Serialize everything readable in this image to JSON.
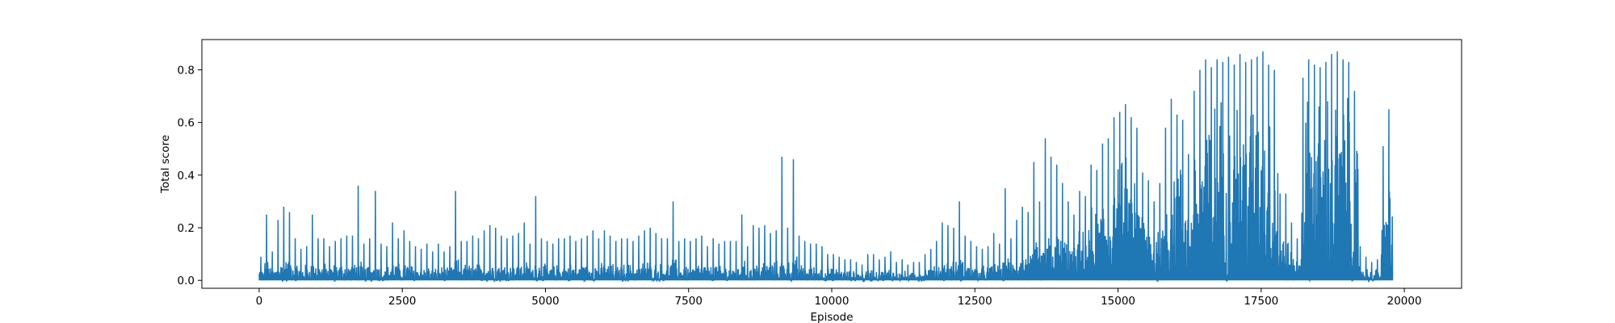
{
  "chart_data": {
    "type": "line",
    "title": "",
    "xlabel": "Episode",
    "ylabel": "Total score",
    "xlim": [
      -1000,
      21000
    ],
    "ylim": [
      -0.03,
      0.915
    ],
    "xticks": [
      0,
      2500,
      5000,
      7500,
      10000,
      12500,
      15000,
      17500,
      20000
    ],
    "xtick_labels": [
      "0",
      "2500",
      "5000",
      "7500",
      "10000",
      "12500",
      "15000",
      "17500",
      "20000"
    ],
    "yticks": [
      0.0,
      0.2,
      0.4,
      0.6,
      0.8
    ],
    "ytick_labels": [
      "0.0",
      "0.2",
      "0.4",
      "0.6",
      "0.8"
    ],
    "grid": false,
    "legend": "none",
    "color": "#1f77b4",
    "series": [
      {
        "episode_step": 100,
        "x_start": 0,
        "x_end": 20000,
        "envelope_max": [
          0.09,
          0.25,
          0.11,
          0.23,
          0.28,
          0.26,
          0.16,
          0.12,
          0.13,
          0.25,
          0.16,
          0.16,
          0.13,
          0.15,
          0.16,
          0.17,
          0.17,
          0.36,
          0.14,
          0.16,
          0.34,
          0.14,
          0.13,
          0.22,
          0.16,
          0.19,
          0.15,
          0.13,
          0.12,
          0.14,
          0.11,
          0.14,
          0.11,
          0.13,
          0.34,
          0.15,
          0.15,
          0.17,
          0.16,
          0.19,
          0.21,
          0.2,
          0.17,
          0.16,
          0.17,
          0.18,
          0.22,
          0.14,
          0.32,
          0.16,
          0.15,
          0.14,
          0.16,
          0.16,
          0.17,
          0.15,
          0.16,
          0.17,
          0.19,
          0.16,
          0.19,
          0.17,
          0.15,
          0.16,
          0.16,
          0.15,
          0.17,
          0.19,
          0.2,
          0.18,
          0.16,
          0.16,
          0.3,
          0.15,
          0.16,
          0.15,
          0.16,
          0.17,
          0.13,
          0.16,
          0.14,
          0.15,
          0.15,
          0.15,
          0.25,
          0.13,
          0.21,
          0.2,
          0.21,
          0.18,
          0.19,
          0.47,
          0.2,
          0.46,
          0.17,
          0.15,
          0.14,
          0.14,
          0.13,
          0.1,
          0.1,
          0.09,
          0.08,
          0.08,
          0.07,
          0.06,
          0.1,
          0.1,
          0.08,
          0.09,
          0.11,
          0.07,
          0.08,
          0.06,
          0.07,
          0.07,
          0.1,
          0.12,
          0.15,
          0.22,
          0.21,
          0.2,
          0.3,
          0.17,
          0.15,
          0.13,
          0.12,
          0.13,
          0.18,
          0.14,
          0.35,
          0.16,
          0.23,
          0.28,
          0.26,
          0.45,
          0.3,
          0.54,
          0.47,
          0.44,
          0.37,
          0.3,
          0.25,
          0.34,
          0.32,
          0.44,
          0.42,
          0.52,
          0.54,
          0.62,
          0.64,
          0.67,
          0.62,
          0.58,
          0.41,
          0.38,
          0.3,
          0.37,
          0.58,
          0.69,
          0.63,
          0.61,
          0.48,
          0.72,
          0.8,
          0.84,
          0.81,
          0.84,
          0.83,
          0.85,
          0.82,
          0.86,
          0.83,
          0.84,
          0.85,
          0.87,
          0.82,
          0.8,
          0.33,
          0.33,
          0.22,
          0.16,
          0.77,
          0.84,
          0.82,
          0.81,
          0.83,
          0.86,
          0.87,
          0.84,
          0.83,
          0.72,
          0.13,
          0.09,
          0.07,
          0.08,
          0.51,
          0.65
        ],
        "envelope_dense": [
          0.05,
          0.08,
          0.06,
          0.08,
          0.09,
          0.09,
          0.07,
          0.06,
          0.07,
          0.08,
          0.07,
          0.07,
          0.06,
          0.07,
          0.07,
          0.07,
          0.07,
          0.08,
          0.06,
          0.07,
          0.08,
          0.06,
          0.06,
          0.08,
          0.07,
          0.08,
          0.07,
          0.06,
          0.06,
          0.06,
          0.05,
          0.06,
          0.05,
          0.06,
          0.09,
          0.07,
          0.07,
          0.07,
          0.07,
          0.08,
          0.08,
          0.08,
          0.07,
          0.07,
          0.07,
          0.07,
          0.08,
          0.06,
          0.09,
          0.07,
          0.06,
          0.06,
          0.07,
          0.07,
          0.07,
          0.06,
          0.07,
          0.07,
          0.08,
          0.07,
          0.08,
          0.07,
          0.06,
          0.07,
          0.07,
          0.06,
          0.07,
          0.08,
          0.08,
          0.07,
          0.07,
          0.07,
          0.09,
          0.06,
          0.07,
          0.06,
          0.07,
          0.07,
          0.06,
          0.07,
          0.06,
          0.06,
          0.06,
          0.06,
          0.08,
          0.06,
          0.08,
          0.08,
          0.08,
          0.07,
          0.08,
          0.1,
          0.08,
          0.1,
          0.07,
          0.06,
          0.06,
          0.06,
          0.06,
          0.05,
          0.05,
          0.05,
          0.04,
          0.04,
          0.04,
          0.03,
          0.05,
          0.05,
          0.04,
          0.05,
          0.05,
          0.04,
          0.04,
          0.03,
          0.04,
          0.04,
          0.05,
          0.06,
          0.07,
          0.08,
          0.08,
          0.08,
          0.1,
          0.08,
          0.07,
          0.06,
          0.06,
          0.06,
          0.08,
          0.07,
          0.11,
          0.08,
          0.1,
          0.12,
          0.12,
          0.16,
          0.14,
          0.2,
          0.2,
          0.2,
          0.19,
          0.16,
          0.14,
          0.2,
          0.22,
          0.3,
          0.31,
          0.38,
          0.4,
          0.46,
          0.5,
          0.5,
          0.48,
          0.44,
          0.3,
          0.25,
          0.2,
          0.28,
          0.45,
          0.55,
          0.5,
          0.48,
          0.35,
          0.6,
          0.7,
          0.74,
          0.73,
          0.75,
          0.76,
          0.77,
          0.75,
          0.78,
          0.76,
          0.77,
          0.78,
          0.79,
          0.75,
          0.6,
          0.2,
          0.2,
          0.12,
          0.09,
          0.68,
          0.76,
          0.76,
          0.75,
          0.76,
          0.78,
          0.79,
          0.77,
          0.75,
          0.6,
          0.07,
          0.05,
          0.04,
          0.05,
          0.3,
          0.5
        ]
      }
    ]
  }
}
